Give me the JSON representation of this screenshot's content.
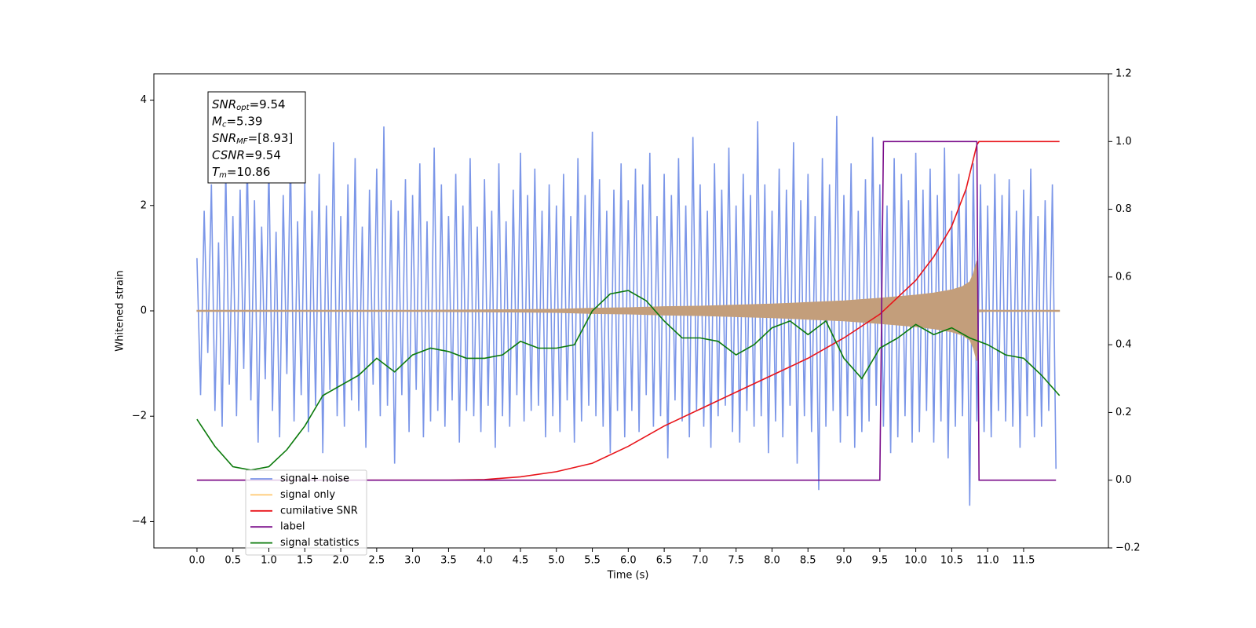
{
  "chart_data": {
    "type": "line",
    "xlabel": "Time (s)",
    "ylabel": "Whitened strain",
    "xlim": [
      -0.6,
      12.68
    ],
    "ylim": [
      -4.5,
      4.5
    ],
    "y2lim": [
      -0.2,
      1.2
    ],
    "xticks": [
      {
        "value": 0,
        "label": "0.0"
      },
      {
        "value": 0.5,
        "label": "0.5"
      },
      {
        "value": 1,
        "label": "1.0"
      },
      {
        "value": 1.5,
        "label": "1.5"
      },
      {
        "value": 2,
        "label": "2.0"
      },
      {
        "value": 2.5,
        "label": "2.5"
      },
      {
        "value": 3,
        "label": "3.0"
      },
      {
        "value": 3.5,
        "label": "3.5"
      },
      {
        "value": 4,
        "label": "4.0"
      },
      {
        "value": 4.5,
        "label": "4.5"
      },
      {
        "value": 5,
        "label": "5.0"
      },
      {
        "value": 5.5,
        "label": "5.5"
      },
      {
        "value": 6,
        "label": "6.0"
      },
      {
        "value": 6.5,
        "label": "6.5"
      },
      {
        "value": 7,
        "label": "7.0"
      },
      {
        "value": 7.5,
        "label": "7.5"
      },
      {
        "value": 8,
        "label": "8.0"
      },
      {
        "value": 8.5,
        "label": "8.5"
      },
      {
        "value": 9,
        "label": "9.0"
      },
      {
        "value": 9.5,
        "label": "9.5"
      },
      {
        "value": 10,
        "label": "10.0"
      },
      {
        "value": 10.5,
        "label": "10.5"
      },
      {
        "value": 11,
        "label": "11.0"
      },
      {
        "value": 11.5,
        "label": "11.5"
      }
    ],
    "yticks": [
      {
        "value": -4,
        "label": "−4"
      },
      {
        "value": -2,
        "label": "−2"
      },
      0,
      2,
      4
    ],
    "y2ticks": [
      {
        "value": -0.2,
        "label": "−0.2"
      },
      {
        "value": 0,
        "label": "0.0"
      },
      0.2,
      0.4,
      0.6,
      0.8,
      {
        "value": 1,
        "label": "1.0"
      },
      1.2
    ],
    "legend": "lower left",
    "annotations": [
      {
        "symbol": "SNR",
        "subscript": "opt",
        "text": "=9.54"
      },
      {
        "symbol": "M",
        "subscript": "c",
        "text": "=5.39"
      },
      {
        "symbol": "SNR",
        "subscript": "MF",
        "text": "=[8.93]"
      },
      {
        "symbol": "CSNR",
        "text": "=9.54"
      },
      {
        "symbol": "T",
        "subscript": "m",
        "text": "=10.86"
      }
    ],
    "series": [
      {
        "name": "signal+ noise",
        "color": "#7b96e8",
        "style": "line",
        "x": [
          0,
          0.05,
          0.1,
          0.15,
          0.2,
          0.25,
          0.3,
          0.35,
          0.4,
          0.45,
          0.5,
          0.55,
          0.6,
          0.65,
          0.7,
          0.75,
          0.8,
          0.85,
          0.9,
          0.95,
          1,
          1.05,
          1.1,
          1.15,
          1.2,
          1.25,
          1.3,
          1.35,
          1.4,
          1.45,
          1.5,
          1.55,
          1.6,
          1.65,
          1.7,
          1.75,
          1.8,
          1.85,
          1.9,
          1.95,
          2,
          2.05,
          2.1,
          2.15,
          2.2,
          2.25,
          2.3,
          2.35,
          2.4,
          2.45,
          2.5,
          2.55,
          2.6,
          2.65,
          2.7,
          2.75,
          2.8,
          2.85,
          2.9,
          2.95,
          3,
          3.05,
          3.1,
          3.15,
          3.2,
          3.25,
          3.3,
          3.35,
          3.4,
          3.45,
          3.5,
          3.55,
          3.6,
          3.65,
          3.7,
          3.75,
          3.8,
          3.85,
          3.9,
          3.95,
          4,
          4.05,
          4.1,
          4.15,
          4.2,
          4.25,
          4.3,
          4.35,
          4.4,
          4.45,
          4.5,
          4.55,
          4.6,
          4.65,
          4.7,
          4.75,
          4.8,
          4.85,
          4.9,
          4.95,
          5,
          5.05,
          5.1,
          5.15,
          5.2,
          5.25,
          5.3,
          5.35,
          5.4,
          5.45,
          5.5,
          5.55,
          5.6,
          5.65,
          5.7,
          5.75,
          5.8,
          5.85,
          5.9,
          5.95,
          6,
          6.05,
          6.1,
          6.15,
          6.2,
          6.25,
          6.3,
          6.35,
          6.4,
          6.45,
          6.5,
          6.55,
          6.6,
          6.65,
          6.7,
          6.75,
          6.8,
          6.85,
          6.9,
          6.95,
          7,
          7.05,
          7.1,
          7.15,
          7.2,
          7.25,
          7.3,
          7.35,
          7.4,
          7.45,
          7.5,
          7.55,
          7.6,
          7.65,
          7.7,
          7.75,
          7.8,
          7.85,
          7.9,
          7.95,
          8,
          8.05,
          8.1,
          8.15,
          8.2,
          8.25,
          8.3,
          8.35,
          8.4,
          8.45,
          8.5,
          8.55,
          8.6,
          8.65,
          8.7,
          8.75,
          8.8,
          8.85,
          8.9,
          8.95,
          9,
          9.05,
          9.1,
          9.15,
          9.2,
          9.25,
          9.3,
          9.35,
          9.4,
          9.45,
          9.5,
          9.55,
          9.6,
          9.65,
          9.7,
          9.75,
          9.8,
          9.85,
          9.9,
          9.95,
          10,
          10.05,
          10.1,
          10.15,
          10.2,
          10.25,
          10.3,
          10.35,
          10.4,
          10.45,
          10.5,
          10.55,
          10.6,
          10.65,
          10.7,
          10.75,
          10.8,
          10.85,
          10.9,
          10.95,
          11,
          11.05,
          11.1,
          11.15,
          11.2,
          11.25,
          11.3,
          11.35,
          11.4,
          11.45,
          11.5,
          11.55,
          11.6,
          11.65,
          11.7,
          11.75,
          11.8,
          11.85,
          11.9,
          11.95
        ],
        "values": [
          1.0,
          -1.6,
          1.9,
          -0.8,
          2.4,
          -1.9,
          1.3,
          -2.2,
          2.7,
          -1.4,
          1.8,
          -2.0,
          2.3,
          -1.1,
          2.9,
          -1.7,
          2.1,
          -2.5,
          1.6,
          -1.3,
          2.8,
          -1.9,
          1.5,
          -2.4,
          2.2,
          -1.2,
          3.0,
          -2.1,
          1.7,
          -1.6,
          2.5,
          -2.3,
          1.9,
          -1.8,
          2.6,
          -2.7,
          2.0,
          -1.5,
          3.2,
          -2.0,
          1.8,
          -2.2,
          2.4,
          -1.7,
          2.9,
          -1.9,
          1.6,
          -2.6,
          2.3,
          -1.4,
          2.7,
          -2.0,
          3.5,
          -1.8,
          2.1,
          -2.9,
          1.9,
          -1.6,
          2.5,
          -2.3,
          2.2,
          -1.5,
          2.8,
          -2.4,
          1.7,
          -2.1,
          3.1,
          -1.9,
          2.4,
          -2.2,
          1.8,
          -1.7,
          2.6,
          -2.5,
          2.0,
          -1.9,
          2.9,
          -2.0,
          1.6,
          -2.3,
          2.5,
          -1.8,
          1.9,
          -2.6,
          2.8,
          -2.0,
          1.7,
          -2.2,
          2.3,
          -1.6,
          3.0,
          -2.1,
          2.2,
          -1.9,
          2.7,
          -1.8,
          1.9,
          -2.4,
          2.4,
          -2.0,
          2.0,
          -2.3,
          2.6,
          -1.7,
          1.8,
          -2.5,
          2.9,
          -2.1,
          2.2,
          -1.8,
          3.4,
          -2.0,
          2.5,
          -2.2,
          1.9,
          -2.7,
          2.3,
          -1.9,
          2.8,
          -2.4,
          2.1,
          -1.9,
          2.7,
          -2.3,
          2.4,
          -1.6,
          3.0,
          -2.2,
          1.8,
          -2.0,
          2.6,
          -2.8,
          2.2,
          -1.7,
          2.9,
          -2.1,
          2.0,
          -2.4,
          3.3,
          -1.9,
          2.4,
          -2.2,
          1.9,
          -2.6,
          2.8,
          -2.0,
          2.3,
          -1.8,
          3.1,
          -2.3,
          2.0,
          -2.5,
          2.6,
          -1.9,
          2.2,
          -2.2,
          3.6,
          -2.0,
          2.4,
          -2.7,
          1.9,
          -2.1,
          2.7,
          -2.4,
          2.3,
          -1.8,
          3.2,
          -2.9,
          2.1,
          -2.0,
          2.6,
          -2.3,
          1.8,
          -3.4,
          2.9,
          -2.2,
          2.4,
          -1.9,
          3.7,
          -2.5,
          2.2,
          -2.0,
          2.8,
          -2.6,
          1.9,
          -2.3,
          2.5,
          -2.1,
          3.3,
          -1.8,
          2.4,
          -2.2,
          2.0,
          -2.7,
          2.9,
          -2.4,
          2.6,
          -2.0,
          2.1,
          -2.5,
          3.0,
          -2.3,
          2.3,
          -1.9,
          2.7,
          -2.5,
          2.2,
          -2.1,
          3.1,
          -2.8,
          1.9,
          -2.2,
          2.6,
          -2.0,
          2.3,
          -3.7,
          2.8,
          -2.1,
          2.4,
          -2.3,
          2.0,
          -2.4,
          2.6,
          -1.9,
          2.2,
          -2.1,
          2.5,
          -2.2,
          1.9,
          -2.6,
          2.3,
          -2.0,
          2.7,
          -2.4,
          1.8,
          -2.2,
          2.1,
          -1.9,
          2.4,
          -3.0
        ]
      },
      {
        "name": "signal only",
        "color": "#ffc870",
        "fill": "#c39e7b",
        "style": "envelope",
        "x": [
          0,
          1,
          2,
          3,
          4,
          5,
          5.5,
          6,
          6.5,
          7,
          7.5,
          8,
          8.5,
          9,
          9.5,
          10,
          10.25,
          10.5,
          10.65,
          10.75,
          10.8,
          10.85,
          10.87,
          11,
          12
        ],
        "values": [
          0.01,
          0.01,
          0.01,
          0.01,
          0.02,
          0.03,
          0.05,
          0.06,
          0.08,
          0.09,
          0.11,
          0.13,
          0.16,
          0.19,
          0.24,
          0.3,
          0.34,
          0.4,
          0.46,
          0.55,
          0.7,
          0.95,
          0.02,
          0.01,
          0.01
        ]
      },
      {
        "name": "cumilative SNR",
        "color": "#e8141a",
        "style": "line",
        "axis": "y2",
        "x": [
          0,
          3.5,
          4,
          4.5,
          5,
          5.5,
          6,
          6.5,
          7,
          7.5,
          8,
          8.5,
          9,
          9.5,
          10,
          10.25,
          10.5,
          10.7,
          10.85,
          10.88,
          12
        ],
        "values": [
          0,
          0,
          0.002,
          0.01,
          0.025,
          0.05,
          0.1,
          0.16,
          0.21,
          0.26,
          0.31,
          0.36,
          0.42,
          0.49,
          0.59,
          0.66,
          0.75,
          0.86,
          0.99,
          1,
          1
        ]
      },
      {
        "name": "label",
        "color": "#7a0c8a",
        "style": "line",
        "axis": "y2",
        "x": [
          0,
          9.5,
          9.55,
          10.85,
          10.88,
          11.95
        ],
        "values": [
          0,
          0,
          1,
          1,
          0,
          0
        ]
      },
      {
        "name": "signal statistics",
        "color": "#0b7a0b",
        "style": "line",
        "axis": "y2",
        "x": [
          0,
          0.25,
          0.5,
          0.75,
          1,
          1.25,
          1.5,
          1.75,
          2,
          2.25,
          2.5,
          2.75,
          3,
          3.25,
          3.5,
          3.75,
          4,
          4.25,
          4.5,
          4.75,
          5,
          5.25,
          5.5,
          5.75,
          6,
          6.25,
          6.5,
          6.75,
          7,
          7.25,
          7.5,
          7.75,
          8,
          8.25,
          8.5,
          8.75,
          9,
          9.25,
          9.5,
          9.75,
          10,
          10.25,
          10.5,
          10.75,
          11,
          11.25,
          11.5,
          11.75,
          12
        ],
        "values": [
          0.18,
          0.1,
          0.04,
          0.03,
          0.04,
          0.09,
          0.16,
          0.25,
          0.28,
          0.31,
          0.36,
          0.32,
          0.37,
          0.39,
          0.38,
          0.36,
          0.36,
          0.37,
          0.41,
          0.39,
          0.39,
          0.4,
          0.5,
          0.55,
          0.56,
          0.53,
          0.47,
          0.42,
          0.42,
          0.41,
          0.37,
          0.4,
          0.45,
          0.47,
          0.43,
          0.47,
          0.36,
          0.3,
          0.39,
          0.42,
          0.46,
          0.43,
          0.45,
          0.42,
          0.4,
          0.37,
          0.36,
          0.31,
          0.25
        ]
      }
    ]
  }
}
